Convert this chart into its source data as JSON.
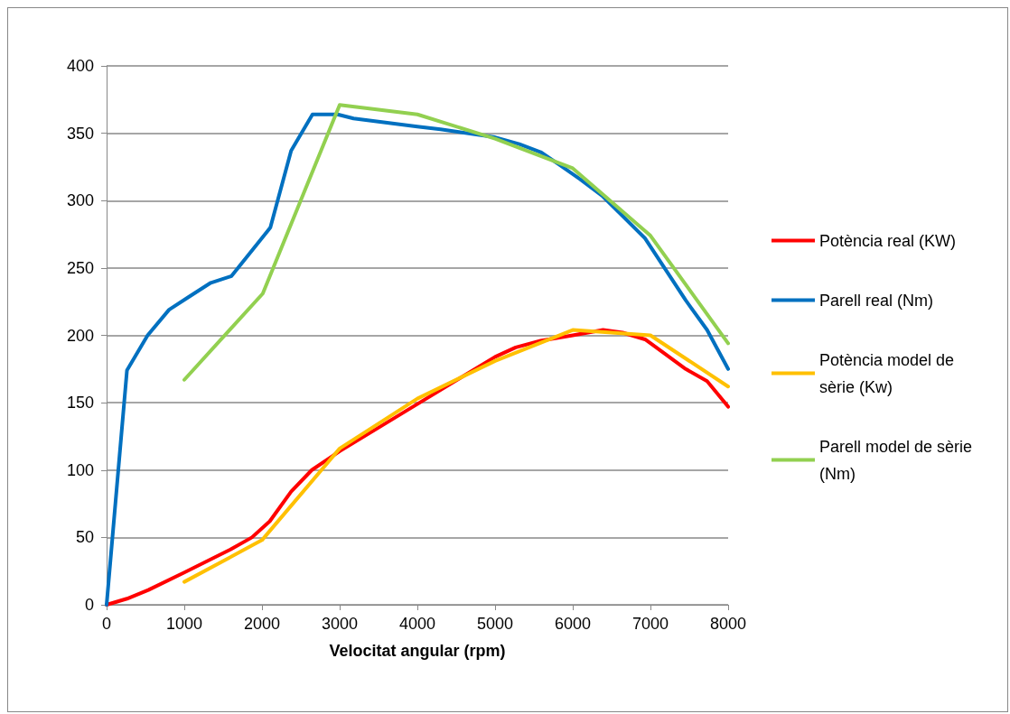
{
  "chart_data": {
    "type": "line",
    "xlabel": "Velocitat angular (rpm)",
    "xlim": [
      0,
      8000
    ],
    "xticks": [
      0,
      1000,
      2000,
      3000,
      4000,
      5000,
      6000,
      7000,
      8000
    ],
    "ylim": [
      0,
      400
    ],
    "yticks": [
      0,
      50,
      100,
      150,
      200,
      250,
      300,
      350,
      400
    ],
    "grid": "y",
    "legend": "right",
    "marker": "none",
    "line_style": "solid",
    "series": [
      {
        "name": "Potència real (KW)",
        "color": "#ff0000",
        "x": [
          0,
          262,
          537,
          1000,
          1594,
          1870,
          2100,
          2375,
          2641,
          3000,
          4000,
          5000,
          5266,
          5587,
          6000,
          6390,
          6642,
          6931,
          7193,
          7454,
          7729,
          8000
        ],
        "values": [
          0,
          4.5,
          11,
          24,
          41,
          50,
          62,
          84,
          100,
          114,
          149,
          184,
          191,
          196,
          200,
          204,
          202,
          197,
          186,
          175,
          166,
          147
        ]
      },
      {
        "name": "Parell real (Nm)",
        "color": "#0070c0",
        "x": [
          0,
          262,
          528,
          804,
          1043,
          1341,
          1608,
          2108,
          2375,
          2650,
          2972,
          3179,
          4000,
          4298,
          5000,
          5312,
          5587,
          5817,
          6092,
          6390,
          6931,
          7454,
          7729,
          8000
        ],
        "values": [
          0,
          174,
          200,
          219,
          228,
          239,
          244,
          280,
          337,
          364,
          364,
          361,
          355,
          353,
          347,
          342,
          336,
          327,
          316,
          303,
          272,
          226,
          204,
          175
        ]
      },
      {
        "name": "Potència model de sèrie (Kw)",
        "color": "#ffc000",
        "x": [
          1000,
          2000,
          3000,
          4000,
          5000,
          6000,
          7000,
          8000
        ],
        "values": [
          17,
          48,
          116,
          153,
          181,
          204,
          200,
          162
        ]
      },
      {
        "name": "Parell model de sèrie (Nm)",
        "color": "#92d050",
        "x": [
          1000,
          2010,
          3000,
          4000,
          5000,
          6000,
          7000,
          8000
        ],
        "values": [
          167,
          231,
          371,
          364,
          346,
          324,
          274,
          194
        ]
      }
    ]
  }
}
